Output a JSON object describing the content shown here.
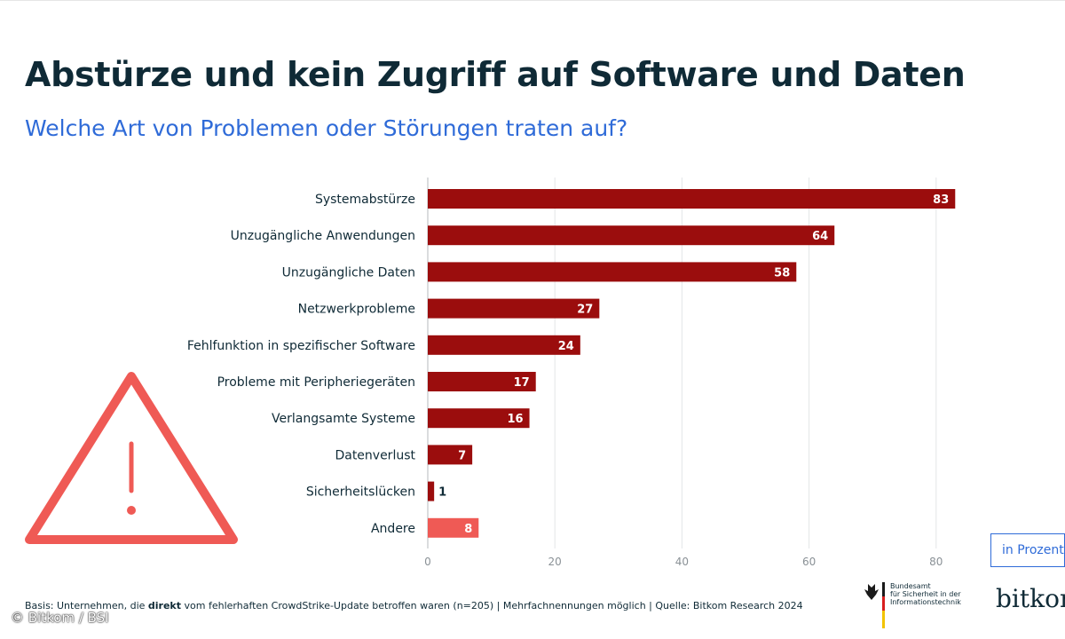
{
  "title": "Abstürze und kein Zugriff auf Software und Daten",
  "subtitle": "Welche Art von Problemen oder Störungen traten auf?",
  "unit_label": "in Prozent",
  "footnote": {
    "prefix": "Basis: Unternehmen, die ",
    "bold": "direkt",
    "suffix": " vom fehlerhaften CrowdStrike-Update betroffen waren (n=205) | Mehrfachnennungen möglich | Quelle: Bitkom Research 2024"
  },
  "copyright": "© Bitkom / BSI",
  "logos": {
    "bsi_lines": [
      "Bundesamt",
      "für Sicherheit in der",
      "Informationstechnik"
    ],
    "bitkom": "bitkom"
  },
  "colors": {
    "bar": "#9b0d0d",
    "bar_other": "#ef5a55",
    "warning": "#ef5a55",
    "title": "#0f2a36",
    "subtitle": "#2f6bd8",
    "grid": "#e3e5e7"
  },
  "chart_data": {
    "type": "bar",
    "orientation": "horizontal",
    "title": "Abstürze und kein Zugriff auf Software und Daten",
    "subtitle": "Welche Art von Problemen oder Störungen traten auf?",
    "xlabel": "in Prozent",
    "ylabel": "",
    "xlim": [
      0,
      85
    ],
    "xticks": [
      0,
      20,
      40,
      60,
      80
    ],
    "grid": true,
    "categories": [
      "Systemabstürze",
      "Unzugängliche Anwendungen",
      "Unzugängliche Daten",
      "Netzwerkprobleme",
      "Fehlfunktion in spezifischer Software",
      "Probleme mit Peripheriegeräten",
      "Verlangsamte Systeme",
      "Datenverlust",
      "Sicherheitslücken",
      "Andere"
    ],
    "values": [
      83,
      64,
      58,
      27,
      24,
      17,
      16,
      7,
      1,
      8
    ]
  }
}
